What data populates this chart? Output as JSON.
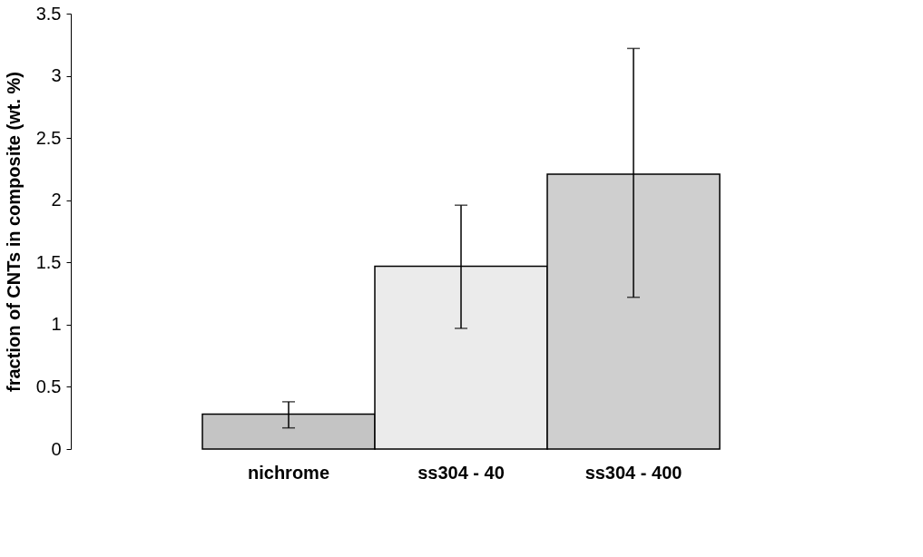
{
  "chart_data": {
    "type": "bar",
    "ylabel": "fraction of CNTs in composite (wt. %)",
    "categories": [
      "nichrome",
      "ss304 - 40",
      "ss304 - 400"
    ],
    "values": [
      0.28,
      1.47,
      2.21
    ],
    "colors": [
      "#c4c4c4",
      "#ebebeb",
      "#cfcfcf"
    ],
    "errors": [
      [
        0.17,
        0.38
      ],
      [
        0.97,
        1.96
      ],
      [
        1.22,
        3.22
      ]
    ],
    "ylim": [
      0,
      3.5
    ],
    "yticks": [
      0,
      0.5,
      1,
      1.5,
      2,
      2.5,
      3,
      3.5
    ],
    "grid": false
  }
}
